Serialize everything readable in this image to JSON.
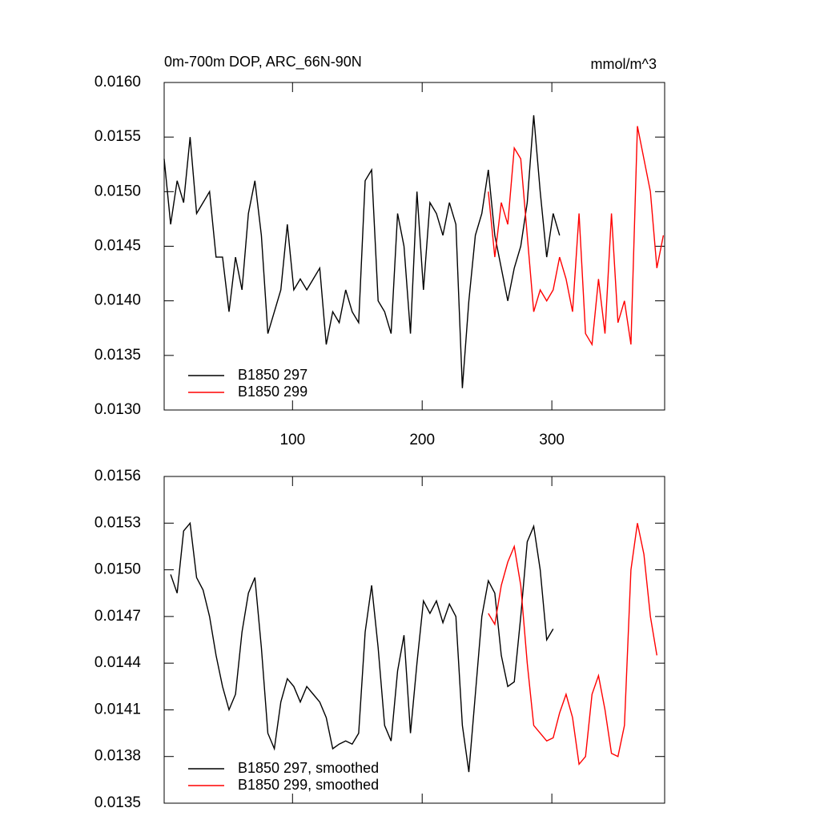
{
  "chart_data": [
    {
      "type": "line",
      "title": "0m-700m DOP, ARC_66N-90N",
      "units": "mmol/m^3",
      "legend": "lower left",
      "x": [
        1,
        6,
        11,
        16,
        21,
        26,
        31,
        36,
        41,
        46,
        51,
        56,
        61,
        66,
        71,
        76,
        81,
        86,
        91,
        96,
        101,
        106,
        111,
        116,
        121,
        126,
        131,
        136,
        141,
        146,
        151,
        156,
        161,
        166,
        171,
        176,
        181,
        186,
        191,
        196,
        201,
        206,
        211,
        216,
        221,
        226,
        231,
        236,
        241,
        246,
        251,
        256,
        261,
        266,
        271,
        276,
        281,
        286,
        291,
        296,
        301,
        306,
        311,
        316,
        321,
        326,
        331,
        336,
        341,
        346,
        351,
        356,
        361,
        366,
        371,
        376,
        381,
        386
      ],
      "xlim": [
        1,
        387
      ],
      "xticks": [
        100,
        200,
        300
      ],
      "ylim": [
        0.013,
        0.016
      ],
      "yticks": [
        {
          "value": 0.013,
          "label": "0.0130"
        },
        {
          "value": 0.0135,
          "label": "0.0135"
        },
        {
          "value": 0.014,
          "label": "0.0140"
        },
        {
          "value": 0.0145,
          "label": "0.0145"
        },
        {
          "value": 0.015,
          "label": "0.0150"
        },
        {
          "value": 0.0155,
          "label": "0.0155"
        },
        {
          "value": 0.016,
          "label": "0.0160"
        }
      ],
      "series": [
        {
          "name": "B1850 297",
          "color": "#000000",
          "values": [
            0.0153,
            0.0147,
            0.0151,
            0.0149,
            0.0155,
            0.0148,
            0.0149,
            0.015,
            0.0144,
            0.0144,
            0.0139,
            0.0144,
            0.0141,
            0.0148,
            0.0151,
            0.0146,
            0.0137,
            0.0139,
            0.0141,
            0.0147,
            0.0141,
            0.0142,
            0.0141,
            0.0142,
            0.0143,
            0.0136,
            0.0139,
            0.0138,
            0.0141,
            0.0139,
            0.0138,
            0.0151,
            0.0152,
            0.014,
            0.0139,
            0.0137,
            0.0148,
            0.0145,
            0.0137,
            0.015,
            0.0141,
            0.0149,
            0.0148,
            0.0146,
            0.0149,
            0.0147,
            0.0132,
            0.014,
            0.0146,
            0.0148,
            0.0152,
            0.0146,
            0.0143,
            0.014,
            0.0143,
            0.0145,
            0.0149,
            0.0157,
            0.015,
            0.0144,
            0.0148,
            0.0146,
            null,
            null,
            null,
            null,
            null,
            null,
            null,
            null,
            null,
            null,
            null,
            null,
            null,
            null,
            null,
            null
          ]
        },
        {
          "name": "B1850 299",
          "color": "#ff0000",
          "values": [
            null,
            null,
            null,
            null,
            null,
            null,
            null,
            null,
            null,
            null,
            null,
            null,
            null,
            null,
            null,
            null,
            null,
            null,
            null,
            null,
            null,
            null,
            null,
            null,
            null,
            null,
            null,
            null,
            null,
            null,
            null,
            null,
            null,
            null,
            null,
            null,
            null,
            null,
            null,
            null,
            null,
            null,
            null,
            null,
            null,
            null,
            null,
            null,
            null,
            null,
            0.015,
            0.0144,
            0.0149,
            0.0147,
            0.0154,
            0.0153,
            0.0146,
            0.0139,
            0.0141,
            0.014,
            0.0141,
            0.0144,
            0.0142,
            0.0139,
            0.0148,
            0.0137,
            0.0136,
            0.0142,
            0.0137,
            0.0148,
            0.0138,
            0.014,
            0.0136,
            0.0156,
            0.0153,
            0.015,
            0.0143,
            0.0146
          ]
        }
      ]
    },
    {
      "type": "line",
      "legend": "lower left",
      "x": [
        1,
        6,
        11,
        16,
        21,
        26,
        31,
        36,
        41,
        46,
        51,
        56,
        61,
        66,
        71,
        76,
        81,
        86,
        91,
        96,
        101,
        106,
        111,
        116,
        121,
        126,
        131,
        136,
        141,
        146,
        151,
        156,
        161,
        166,
        171,
        176,
        181,
        186,
        191,
        196,
        201,
        206,
        211,
        216,
        221,
        226,
        231,
        236,
        241,
        246,
        251,
        256,
        261,
        266,
        271,
        276,
        281,
        286,
        291,
        296,
        301,
        306,
        311,
        316,
        321,
        326,
        331,
        336,
        341,
        346,
        351,
        356,
        361,
        366,
        371,
        376,
        381,
        386
      ],
      "xlim": [
        1,
        387
      ],
      "xticks": [
        100,
        200,
        300
      ],
      "ylim": [
        0.0135,
        0.0156
      ],
      "yticks": [
        {
          "value": 0.0135,
          "label": "0.0135"
        },
        {
          "value": 0.0138,
          "label": "0.0138"
        },
        {
          "value": 0.0141,
          "label": "0.0141"
        },
        {
          "value": 0.0144,
          "label": "0.0144"
        },
        {
          "value": 0.0147,
          "label": "0.0147"
        },
        {
          "value": 0.015,
          "label": "0.0150"
        },
        {
          "value": 0.0153,
          "label": "0.0153"
        },
        {
          "value": 0.0156,
          "label": "0.0156"
        }
      ],
      "series": [
        {
          "name": "B1850 297, smoothed",
          "color": "#000000",
          "values": [
            null,
            0.01497,
            0.01485,
            0.01525,
            0.0153,
            0.01495,
            0.01487,
            0.0147,
            0.01445,
            0.01425,
            0.0141,
            0.0142,
            0.0146,
            0.01485,
            0.01495,
            0.0145,
            0.01395,
            0.01385,
            0.01415,
            0.0143,
            0.01425,
            0.01415,
            0.01425,
            0.0142,
            0.01415,
            0.01405,
            0.01385,
            0.01388,
            0.0139,
            0.01388,
            0.01395,
            0.0146,
            0.0149,
            0.0145,
            0.014,
            0.0139,
            0.01435,
            0.01458,
            0.01395,
            0.0144,
            0.0148,
            0.01472,
            0.0148,
            0.01466,
            0.01478,
            0.0147,
            0.014,
            0.0137,
            0.0142,
            0.0147,
            0.01493,
            0.01485,
            0.01445,
            0.01425,
            0.01428,
            0.0147,
            0.01518,
            0.01528,
            0.015,
            0.01455,
            0.01462,
            null,
            null,
            null,
            null,
            null,
            null,
            null,
            null,
            null,
            null,
            null,
            null,
            null,
            null,
            null,
            null,
            null
          ]
        },
        {
          "name": "B1850 299, smoothed",
          "color": "#ff0000",
          "values": [
            null,
            null,
            null,
            null,
            null,
            null,
            null,
            null,
            null,
            null,
            null,
            null,
            null,
            null,
            null,
            null,
            null,
            null,
            null,
            null,
            null,
            null,
            null,
            null,
            null,
            null,
            null,
            null,
            null,
            null,
            null,
            null,
            null,
            null,
            null,
            null,
            null,
            null,
            null,
            null,
            null,
            null,
            null,
            null,
            null,
            null,
            null,
            null,
            null,
            null,
            0.01472,
            0.01465,
            0.0149,
            0.01505,
            0.01515,
            0.0149,
            0.0144,
            0.014,
            0.01395,
            0.0139,
            0.01392,
            0.01408,
            0.0142,
            0.01405,
            0.01375,
            0.0138,
            0.0142,
            0.01432,
            0.0141,
            0.01382,
            0.0138,
            0.014,
            0.015,
            0.0153,
            0.0151,
            0.0147,
            0.01445,
            null
          ]
        }
      ]
    }
  ]
}
